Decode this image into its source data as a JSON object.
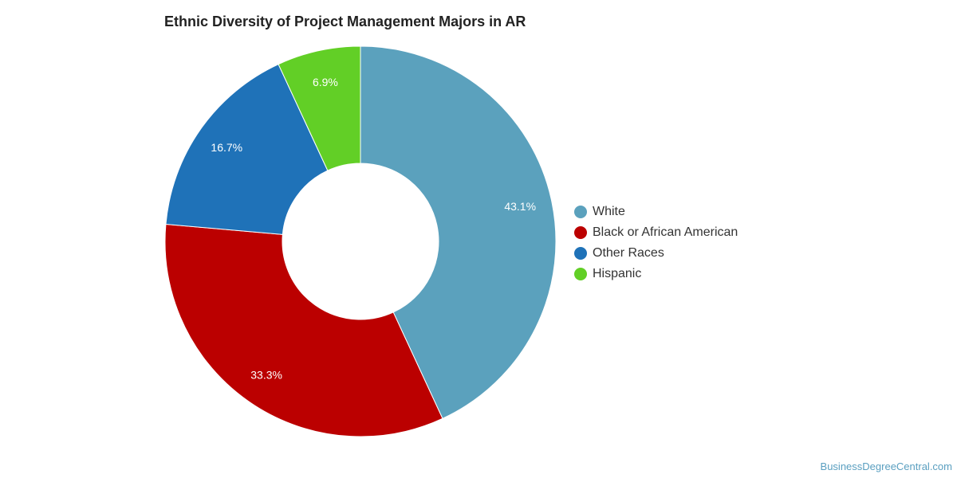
{
  "chart_data": {
    "type": "pie",
    "variant": "donut",
    "title": "Ethnic Diversity of Project Management Majors in AR",
    "slices": [
      {
        "label": "White",
        "value": 43.1,
        "value_label": "43.1%",
        "color": "#5ba1bd"
      },
      {
        "label": "Black or African American",
        "value": 33.3,
        "value_label": "33.3%",
        "color": "#bb0000"
      },
      {
        "label": "Other Races",
        "value": 16.7,
        "value_label": "16.7%",
        "color": "#1f72b8"
      },
      {
        "label": "Hispanic",
        "value": 6.9,
        "value_label": "6.9%",
        "color": "#62cf26"
      }
    ],
    "legend_position": "right"
  },
  "source": "BusinessDegreeCentral.com"
}
